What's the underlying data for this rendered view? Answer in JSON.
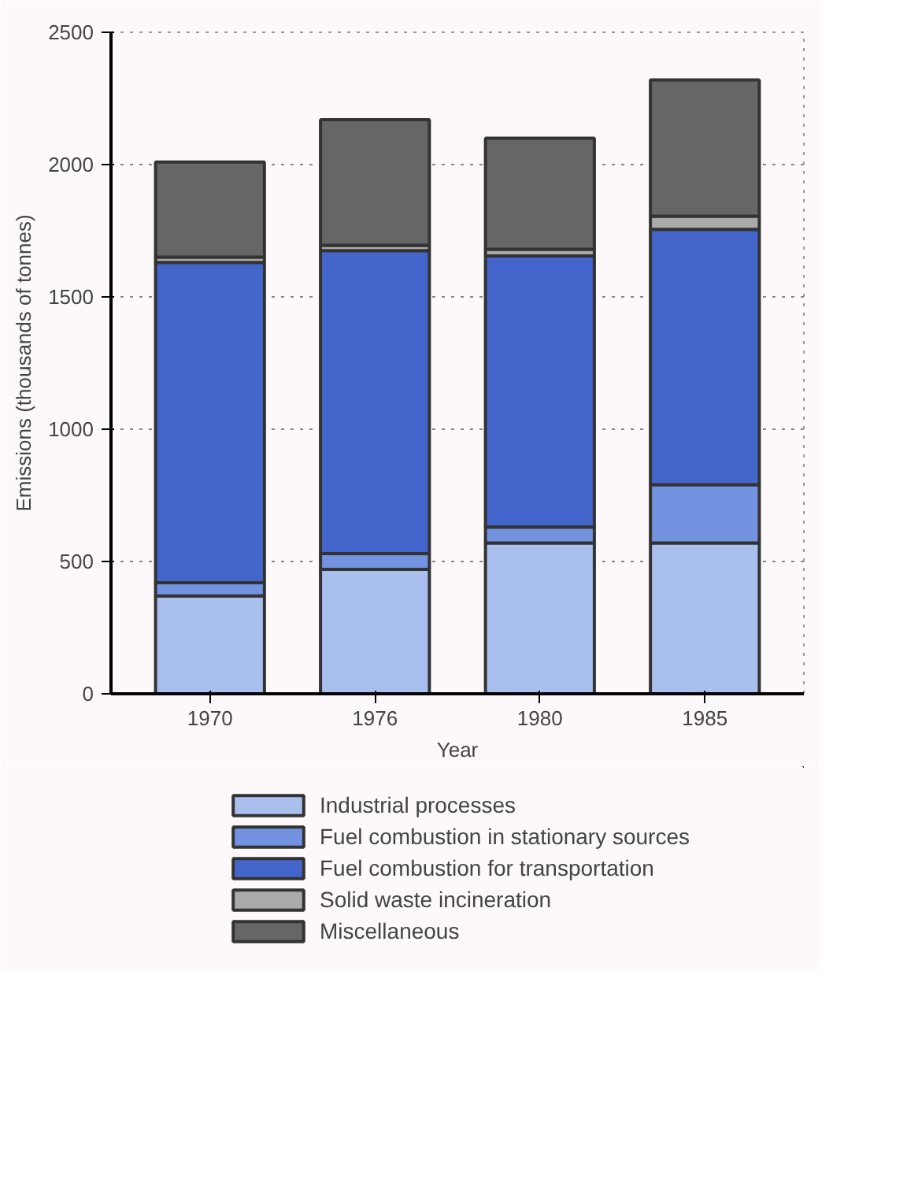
{
  "chart_data": {
    "type": "bar",
    "stacked": true,
    "xlabel": "Year",
    "ylabel": "Emissions (thousands of tonnes)",
    "categories": [
      "1970",
      "1976",
      "1980",
      "1985"
    ],
    "series": [
      {
        "name": "Industrial processes",
        "color": "#a9c0ee",
        "values": [
          370,
          470,
          570,
          570
        ]
      },
      {
        "name": "Fuel combustion in stationary sources",
        "color": "#7393e0",
        "values": [
          50,
          60,
          60,
          220
        ]
      },
      {
        "name": "Fuel combustion for transportation",
        "color": "#4466cc",
        "values": [
          1210,
          1145,
          1025,
          965
        ]
      },
      {
        "name": "Solid waste incineration",
        "color": "#aaaaaa",
        "values": [
          20,
          20,
          25,
          50
        ]
      },
      {
        "name": "Miscellaneous",
        "color": "#666666",
        "values": [
          360,
          475,
          420,
          515
        ]
      }
    ],
    "ylim": [
      0,
      2500
    ],
    "yticks": [
      0,
      500,
      1000,
      1500,
      2000,
      2500
    ],
    "grid": "y",
    "legend": "bottom"
  }
}
